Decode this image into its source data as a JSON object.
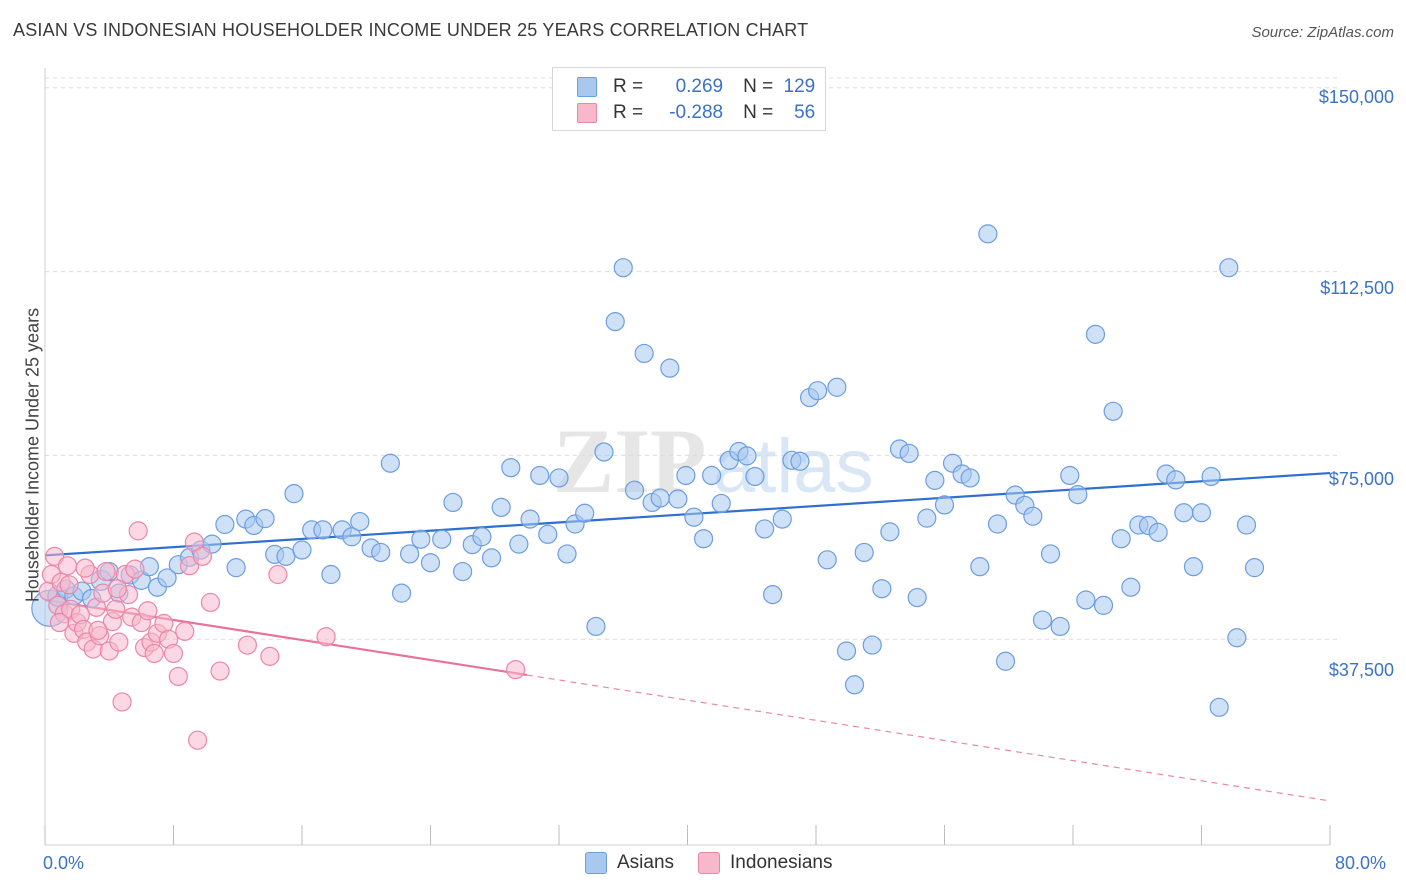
{
  "title": "ASIAN VS INDONESIAN HOUSEHOLDER INCOME UNDER 25 YEARS CORRELATION CHART",
  "source": "Source: ZipAtlas.com",
  "watermark": "ZIPatlas",
  "legend_top": [
    {
      "r_label": "R =",
      "r_value": "0.269",
      "n_label": "N =",
      "n_value": "129",
      "color": "#a8c8f0",
      "border": "#6c9de0"
    },
    {
      "r_label": "R =",
      "r_value": "-0.288",
      "n_label": "N =",
      "n_value": "56",
      "color": "#f8b8cc",
      "border": "#ec86a6"
    }
  ],
  "legend_bottom": [
    {
      "label": "Asians",
      "color": "#a8c8f0",
      "border": "#6c9de0"
    },
    {
      "label": "Indonesians",
      "color": "#f8b8cc",
      "border": "#ec86a6"
    }
  ],
  "axes": {
    "ylabel": "Householder Income Under 25 years",
    "x_min_label": "0.0%",
    "x_max_label": "80.0%",
    "y_tick_labels": [
      "$150,000",
      "$112,500",
      "$75,000",
      "$37,500"
    ]
  },
  "chart_data": {
    "type": "scatter",
    "title": "ASIAN VS INDONESIAN HOUSEHOLDER INCOME UNDER 25 YEARS CORRELATION CHART",
    "xlabel": "",
    "ylabel": "Householder Income Under 25 years",
    "xlim": [
      0,
      80
    ],
    "ylim": [
      0,
      152000
    ],
    "y_ticks": [
      37500,
      75000,
      112500,
      150000
    ],
    "grid": true,
    "legend_position": "top-center",
    "series": [
      {
        "name": "Asians",
        "color": "#6c9de0",
        "fill": "#a8c8f0",
        "trend": {
          "x": [
            0,
            80
          ],
          "y": [
            54600,
            71400
          ],
          "style": "solid"
        },
        "points": [
          [
            0.3,
            43800,
            18
          ],
          [
            0.8,
            46300,
            10
          ],
          [
            1.3,
            47700,
            9
          ],
          [
            1.8,
            46300,
            9
          ],
          [
            2.3,
            47300,
            9
          ],
          [
            2.9,
            45800,
            9
          ],
          [
            3.5,
            49500,
            10
          ],
          [
            4.0,
            51300,
            9
          ],
          [
            4.6,
            46900,
            9
          ],
          [
            5.3,
            50600,
            9
          ],
          [
            6.0,
            49500,
            9
          ],
          [
            6.5,
            52300,
            9
          ],
          [
            7.0,
            48100,
            9
          ],
          [
            7.6,
            50000,
            9
          ],
          [
            8.3,
            52700,
            9
          ],
          [
            9.0,
            54200,
            9
          ],
          [
            9.7,
            55700,
            9
          ],
          [
            10.4,
            56900,
            9
          ],
          [
            11.2,
            60900,
            9
          ],
          [
            11.9,
            52100,
            9
          ],
          [
            12.5,
            62000,
            9
          ],
          [
            13.0,
            60700,
            9
          ],
          [
            13.7,
            62100,
            9
          ],
          [
            14.3,
            54800,
            9
          ],
          [
            15.0,
            54400,
            9
          ],
          [
            15.5,
            67200,
            9
          ],
          [
            16.0,
            55700,
            9
          ],
          [
            16.6,
            59800,
            9
          ],
          [
            17.3,
            59800,
            9
          ],
          [
            17.8,
            50700,
            9
          ],
          [
            18.5,
            59800,
            9
          ],
          [
            19.1,
            58400,
            9
          ],
          [
            19.6,
            61500,
            9
          ],
          [
            20.3,
            56100,
            9
          ],
          [
            20.9,
            55200,
            9
          ],
          [
            21.5,
            73400,
            9
          ],
          [
            22.2,
            46900,
            9
          ],
          [
            22.7,
            54900,
            9
          ],
          [
            23.4,
            57900,
            9
          ],
          [
            24.0,
            53100,
            9
          ],
          [
            24.7,
            57900,
            9
          ],
          [
            25.4,
            65400,
            9
          ],
          [
            26.0,
            51300,
            9
          ],
          [
            26.6,
            56800,
            9
          ],
          [
            27.2,
            58400,
            9
          ],
          [
            27.8,
            54100,
            9
          ],
          [
            28.4,
            64400,
            9
          ],
          [
            29.0,
            72500,
            9
          ],
          [
            29.5,
            56900,
            9
          ],
          [
            30.2,
            62000,
            9
          ],
          [
            30.8,
            70900,
            9
          ],
          [
            31.3,
            58900,
            9
          ],
          [
            32.0,
            70400,
            9
          ],
          [
            32.5,
            54900,
            9
          ],
          [
            33.0,
            61000,
            9
          ],
          [
            33.6,
            63200,
            9
          ],
          [
            34.3,
            40100,
            9
          ],
          [
            34.8,
            75700,
            9
          ],
          [
            35.5,
            102300,
            9
          ],
          [
            36.0,
            113300,
            9
          ],
          [
            36.7,
            67900,
            9
          ],
          [
            37.3,
            95800,
            9
          ],
          [
            37.8,
            65400,
            9
          ],
          [
            38.3,
            66300,
            9
          ],
          [
            38.9,
            92800,
            9
          ],
          [
            39.4,
            66100,
            9
          ],
          [
            39.9,
            70900,
            9
          ],
          [
            40.4,
            62400,
            9
          ],
          [
            41.0,
            58000,
            9
          ],
          [
            41.5,
            70900,
            9
          ],
          [
            42.1,
            65200,
            9
          ],
          [
            42.6,
            74000,
            9
          ],
          [
            43.2,
            75800,
            9
          ],
          [
            43.7,
            74900,
            9
          ],
          [
            44.2,
            70700,
            9
          ],
          [
            44.8,
            60000,
            9
          ],
          [
            45.3,
            46600,
            9
          ],
          [
            45.9,
            62000,
            9
          ],
          [
            46.5,
            74000,
            9
          ],
          [
            47.0,
            73800,
            9
          ],
          [
            47.6,
            86800,
            9
          ],
          [
            48.1,
            88200,
            9
          ],
          [
            48.7,
            53700,
            9
          ],
          [
            49.3,
            88900,
            9
          ],
          [
            49.9,
            35100,
            9
          ],
          [
            50.4,
            28200,
            9
          ],
          [
            51.0,
            55200,
            9
          ],
          [
            51.5,
            36300,
            9
          ],
          [
            52.1,
            47800,
            9
          ],
          [
            52.6,
            59400,
            9
          ],
          [
            53.2,
            76300,
            9
          ],
          [
            53.8,
            75400,
            9
          ],
          [
            54.3,
            46000,
            9
          ],
          [
            54.9,
            62200,
            9
          ],
          [
            55.4,
            69900,
            9
          ],
          [
            56.0,
            64900,
            9
          ],
          [
            56.5,
            73400,
            9
          ],
          [
            57.1,
            71200,
            9
          ],
          [
            57.6,
            70400,
            9
          ],
          [
            58.2,
            52300,
            9
          ],
          [
            58.7,
            120200,
            9
          ],
          [
            59.3,
            61000,
            9
          ],
          [
            59.8,
            33000,
            9
          ],
          [
            60.4,
            66900,
            9
          ],
          [
            61.0,
            64800,
            9
          ],
          [
            61.5,
            62600,
            9
          ],
          [
            62.1,
            41400,
            9
          ],
          [
            62.6,
            54900,
            9
          ],
          [
            63.2,
            40100,
            9
          ],
          [
            63.8,
            70900,
            9
          ],
          [
            64.3,
            67000,
            9
          ],
          [
            64.8,
            45500,
            9
          ],
          [
            65.4,
            99700,
            9
          ],
          [
            65.9,
            44400,
            9
          ],
          [
            66.5,
            84000,
            9
          ],
          [
            67.0,
            58000,
            9
          ],
          [
            67.6,
            48100,
            9
          ],
          [
            68.1,
            60800,
            9
          ],
          [
            68.7,
            60700,
            9
          ],
          [
            69.3,
            59300,
            9
          ],
          [
            69.8,
            71200,
            9
          ],
          [
            70.4,
            70000,
            9
          ],
          [
            70.9,
            63300,
            9
          ],
          [
            71.5,
            52300,
            9
          ],
          [
            72.0,
            63300,
            9
          ],
          [
            72.6,
            70700,
            9
          ],
          [
            73.1,
            23600,
            9
          ],
          [
            73.7,
            113300,
            9
          ],
          [
            74.2,
            37800,
            9
          ],
          [
            74.8,
            60800,
            9
          ],
          [
            75.3,
            52100,
            9
          ]
        ]
      },
      {
        "name": "Indonesians",
        "color": "#ec86a6",
        "fill": "#f8b8cc",
        "trend": {
          "x": [
            0,
            30
          ],
          "y": [
            45500,
            30200
          ],
          "style": "solid"
        },
        "trend_extension": {
          "x": [
            30,
            80
          ],
          "y": [
            30200,
            4500
          ],
          "style": "dashed"
        },
        "points": [
          [
            0.2,
            47300,
            9
          ],
          [
            0.4,
            50700,
            9
          ],
          [
            0.6,
            54400,
            9
          ],
          [
            0.8,
            44400,
            9
          ],
          [
            1.0,
            49100,
            9
          ],
          [
            1.2,
            42700,
            9
          ],
          [
            1.4,
            52500,
            9
          ],
          [
            1.6,
            43600,
            9
          ],
          [
            1.8,
            38700,
            9
          ],
          [
            2.0,
            40900,
            9
          ],
          [
            2.2,
            42500,
            9
          ],
          [
            2.4,
            39500,
            9
          ],
          [
            2.6,
            36900,
            9
          ],
          [
            2.8,
            50700,
            9
          ],
          [
            3.0,
            35500,
            9
          ],
          [
            3.2,
            44000,
            9
          ],
          [
            3.4,
            38200,
            9
          ],
          [
            3.6,
            46900,
            9
          ],
          [
            3.8,
            51300,
            9
          ],
          [
            4.0,
            35100,
            9
          ],
          [
            4.2,
            41100,
            9
          ],
          [
            4.4,
            43600,
            9
          ],
          [
            4.6,
            36900,
            9
          ],
          [
            4.8,
            24700,
            9
          ],
          [
            5.0,
            50700,
            9
          ],
          [
            5.2,
            46600,
            9
          ],
          [
            5.4,
            42000,
            9
          ],
          [
            5.6,
            51800,
            9
          ],
          [
            5.8,
            59600,
            9
          ],
          [
            6.0,
            40900,
            9
          ],
          [
            6.2,
            35800,
            9
          ],
          [
            6.4,
            43300,
            9
          ],
          [
            6.6,
            36900,
            9
          ],
          [
            6.8,
            34600,
            9
          ],
          [
            7.0,
            38700,
            9
          ],
          [
            7.4,
            40700,
            9
          ],
          [
            7.7,
            37500,
            9
          ],
          [
            8.0,
            34600,
            9
          ],
          [
            8.3,
            29900,
            9
          ],
          [
            8.7,
            39100,
            9
          ],
          [
            9.0,
            52500,
            9
          ],
          [
            9.3,
            57300,
            9
          ],
          [
            9.5,
            16900,
            9
          ],
          [
            9.8,
            54400,
            9
          ],
          [
            10.3,
            45000,
            9
          ],
          [
            10.9,
            31000,
            9
          ],
          [
            12.6,
            36300,
            9
          ],
          [
            14.0,
            34000,
            9
          ],
          [
            14.5,
            50700,
            9
          ],
          [
            17.5,
            38000,
            9
          ],
          [
            29.3,
            31300,
            9
          ],
          [
            1.5,
            48600,
            9
          ],
          [
            2.5,
            52000,
            9
          ],
          [
            3.3,
            39300,
            9
          ],
          [
            0.9,
            40900,
            9
          ],
          [
            4.5,
            47800,
            9
          ]
        ]
      }
    ]
  }
}
